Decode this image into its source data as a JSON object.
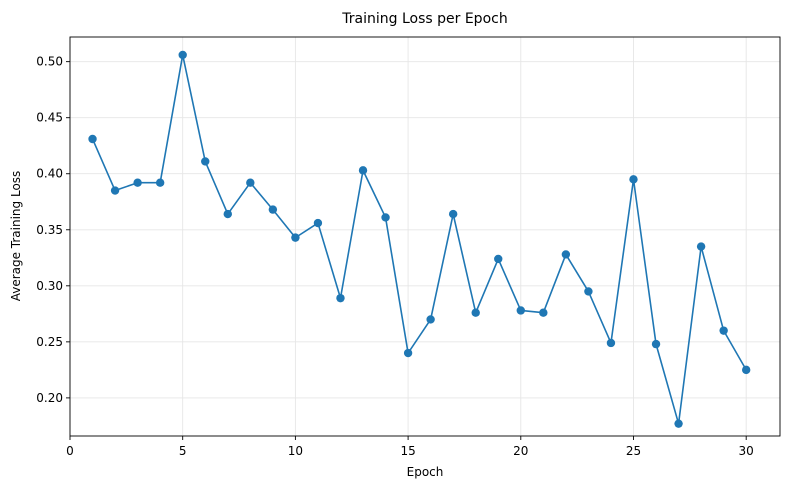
{
  "chart_data": {
    "type": "line",
    "title": "Training Loss per Epoch",
    "xlabel": "Epoch",
    "ylabel": "Average Training Loss",
    "xlim": [
      0,
      31.5
    ],
    "ylim": [
      0.166,
      0.522
    ],
    "xticks": [
      0,
      5,
      10,
      15,
      20,
      25,
      30
    ],
    "xtick_labels": [
      "0",
      "5",
      "10",
      "15",
      "20",
      "25",
      "30"
    ],
    "yticks": [
      0.2,
      0.25,
      0.3,
      0.35,
      0.4,
      0.45,
      0.5
    ],
    "ytick_labels": [
      "0.20",
      "0.25",
      "0.30",
      "0.35",
      "0.40",
      "0.45",
      "0.50"
    ],
    "grid": true,
    "marker": "circle",
    "color": "#1f77b4",
    "x": [
      1,
      2,
      3,
      4,
      5,
      6,
      7,
      8,
      9,
      10,
      11,
      12,
      13,
      14,
      15,
      16,
      17,
      18,
      19,
      20,
      21,
      22,
      23,
      24,
      25,
      26,
      27,
      28,
      29,
      30
    ],
    "series": [
      {
        "values": [
          0.431,
          0.385,
          0.392,
          0.392,
          0.506,
          0.411,
          0.364,
          0.392,
          0.368,
          0.343,
          0.356,
          0.289,
          0.403,
          0.361,
          0.24,
          0.27,
          0.364,
          0.276,
          0.324,
          0.278,
          0.276,
          0.328,
          0.295,
          0.249,
          0.395,
          0.248,
          0.177,
          0.335,
          0.26,
          0.225
        ]
      }
    ]
  }
}
